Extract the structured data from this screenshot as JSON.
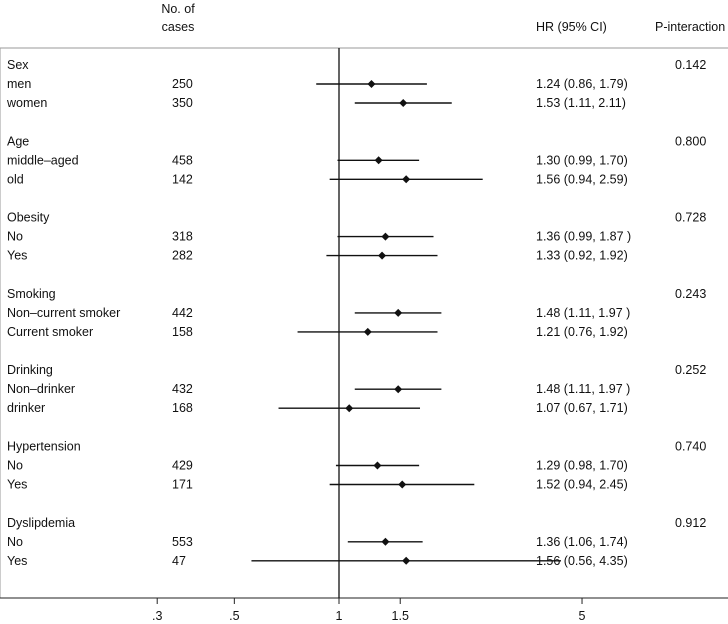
{
  "chart_data": {
    "type": "forest",
    "header": {
      "cases_line1": "No. of",
      "cases_line2": "cases",
      "hr": "HR (95% CI)",
      "p": "P-interaction"
    },
    "x_scale": "log",
    "xlim": [
      0.25,
      6.5
    ],
    "reference_line": 1,
    "x_ticks": [
      {
        "value": 0.3,
        "label": ".3"
      },
      {
        "value": 0.5,
        "label": ".5"
      },
      {
        "value": 1,
        "label": "1"
      },
      {
        "value": 1.5,
        "label": "1.5"
      },
      {
        "value": 5,
        "label": "5"
      }
    ],
    "groups": [
      {
        "name": "Sex",
        "p_interaction": "0.142",
        "rows": [
          {
            "label": "men",
            "cases": "250",
            "hr": 1.24,
            "lo": 0.86,
            "hi": 1.79,
            "hr_text": "1.24 (0.86, 1.79)"
          },
          {
            "label": "women",
            "cases": "350",
            "hr": 1.53,
            "lo": 1.11,
            "hi": 2.11,
            "hr_text": "1.53 (1.11, 2.11)"
          }
        ]
      },
      {
        "name": "Age",
        "p_interaction": "0.800",
        "rows": [
          {
            "label": "middle–aged",
            "cases": "458",
            "hr": 1.3,
            "lo": 0.99,
            "hi": 1.7,
            "hr_text": "1.30 (0.99, 1.70)"
          },
          {
            "label": "old",
            "cases": "142",
            "hr": 1.56,
            "lo": 0.94,
            "hi": 2.59,
            "hr_text": "1.56 (0.94, 2.59)"
          }
        ]
      },
      {
        "name": "Obesity",
        "p_interaction": "0.728",
        "rows": [
          {
            "label": "No",
            "cases": "318",
            "hr": 1.36,
            "lo": 0.99,
            "hi": 1.87,
            "hr_text": "1.36 (0.99, 1.87 )"
          },
          {
            "label": "Yes",
            "cases": "282",
            "hr": 1.33,
            "lo": 0.92,
            "hi": 1.92,
            "hr_text": "1.33 (0.92, 1.92)"
          }
        ]
      },
      {
        "name": "Smoking",
        "p_interaction": "0.243",
        "rows": [
          {
            "label": "Non–current smoker",
            "cases": "442",
            "hr": 1.48,
            "lo": 1.11,
            "hi": 1.97,
            "hr_text": "1.48 (1.11, 1.97 )"
          },
          {
            "label": "Current smoker",
            "cases": "158",
            "hr": 1.21,
            "lo": 0.76,
            "hi": 1.92,
            "hr_text": "1.21 (0.76, 1.92)"
          }
        ]
      },
      {
        "name": "Drinking",
        "p_interaction": "0.252",
        "rows": [
          {
            "label": "Non–drinker",
            "cases": "432",
            "hr": 1.48,
            "lo": 1.11,
            "hi": 1.97,
            "hr_text": "1.48 (1.11, 1.97 )"
          },
          {
            "label": "drinker",
            "cases": "168",
            "hr": 1.07,
            "lo": 0.67,
            "hi": 1.71,
            "hr_text": "1.07 (0.67, 1.71)"
          }
        ]
      },
      {
        "name": "Hypertension",
        "p_interaction": "0.740",
        "rows": [
          {
            "label": "No",
            "cases": "429",
            "hr": 1.29,
            "lo": 0.98,
            "hi": 1.7,
            "hr_text": "1.29 (0.98, 1.70)"
          },
          {
            "label": "Yes",
            "cases": "171",
            "hr": 1.52,
            "lo": 0.94,
            "hi": 2.45,
            "hr_text": "1.52 (0.94, 2.45)"
          }
        ]
      },
      {
        "name": "Dyslipdemia",
        "p_interaction": "0.912",
        "rows": [
          {
            "label": "No",
            "cases": "553",
            "hr": 1.36,
            "lo": 1.06,
            "hi": 1.74,
            "hr_text": "1.36 (1.06, 1.74)"
          },
          {
            "label": "Yes",
            "cases": "47",
            "hr": 1.56,
            "lo": 0.56,
            "hi": 4.35,
            "hr_text": "1.56 (0.56, 4.35)"
          }
        ]
      }
    ]
  }
}
